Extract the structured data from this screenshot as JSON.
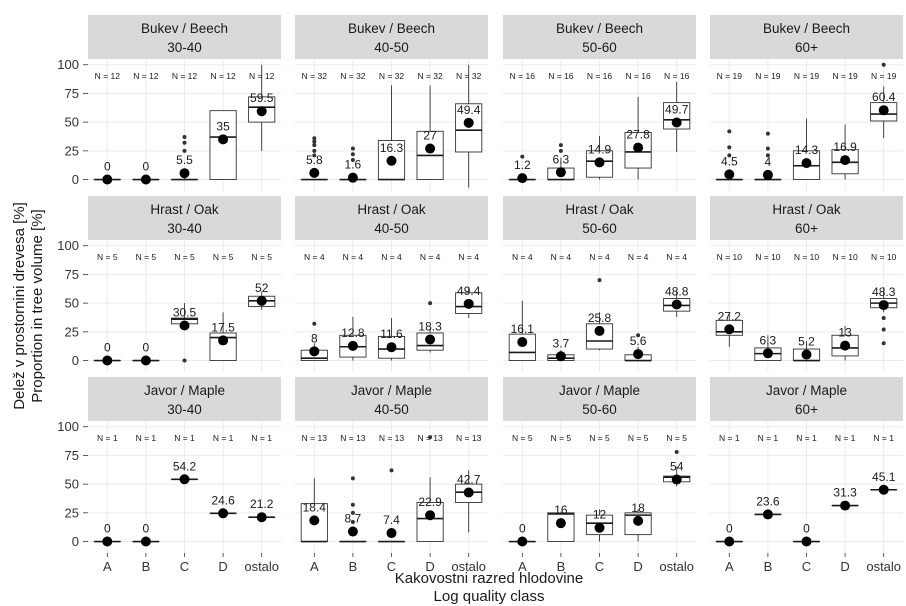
{
  "chart_data": {
    "type": "boxplot",
    "ylabel_lines": [
      "Delež v prostornini drevesa [%]",
      "Proportion in tree volume [%]"
    ],
    "xlabel_lines": [
      "Kakovostni razred hlodovine",
      "Log quality class"
    ],
    "categories": [
      "A",
      "B",
      "C",
      "D",
      "ostalo"
    ],
    "ylim": [
      -10,
      105
    ],
    "yticks": [
      0,
      25,
      50,
      75,
      100
    ],
    "grid": true,
    "rows": [
      {
        "species": "Bukev / Beech",
        "panels": [
          {
            "diameter": "30-40",
            "n": [
              "N = 12",
              "N = 12",
              "N = 12",
              "N = 12",
              "N = 12"
            ],
            "means": [
              0,
              0,
              5.5,
              35,
              59.5
            ],
            "mean_labels": [
              "0",
              "0",
              "5.5",
              "35",
              "59.5"
            ],
            "boxes": [
              [
                0,
                0,
                0,
                0,
                0
              ],
              [
                0,
                0,
                0,
                0,
                0
              ],
              [
                0,
                0,
                0,
                0,
                2
              ],
              [
                0,
                0,
                37,
                60,
                60
              ],
              [
                25,
                50,
                63,
                72,
                100
              ]
            ],
            "outliers": [
              [],
              [],
              [
                25,
                32,
                37
              ],
              [],
              []
            ]
          },
          {
            "diameter": "40-50",
            "n": [
              "N = 32",
              "N = 32",
              "N = 32",
              "N = 32",
              "N = 32"
            ],
            "means": [
              5.8,
              1.6,
              16.3,
              27,
              49.4
            ],
            "mean_labels": [
              "5.8",
              "1.6",
              "16.3",
              "27",
              "49.4"
            ],
            "boxes": [
              [
                0,
                0,
                0,
                0,
                0
              ],
              [
                0,
                0,
                0,
                0,
                0
              ],
              [
                0,
                0,
                0,
                34,
                82
              ],
              [
                0,
                0,
                21,
                42,
                82
              ],
              [
                -7,
                24,
                43,
                66,
                100
              ]
            ],
            "outliers": [
              [
                21,
                25,
                30,
                33,
                36
              ],
              [
                17,
                22,
                27
              ],
              [],
              [],
              []
            ]
          },
          {
            "diameter": "50-60",
            "n": [
              "N = 16",
              "N = 16",
              "N = 16",
              "N = 16",
              "N = 16"
            ],
            "means": [
              1.2,
              6.3,
              14.9,
              27.8,
              49.7
            ],
            "mean_labels": [
              "1.2",
              "6.3",
              "14.9",
              "27.8",
              "49.7"
            ],
            "boxes": [
              [
                0,
                0,
                0,
                0,
                0
              ],
              [
                0,
                0,
                0,
                10,
                19
              ],
              [
                0,
                2,
                16,
                25,
                38
              ],
              [
                0,
                10,
                24,
                41,
                72
              ],
              [
                24,
                44,
                52,
                67,
                85
              ]
            ],
            "outliers": [
              [
                20
              ],
              [
                25,
                30
              ],
              [],
              [],
              []
            ]
          },
          {
            "diameter": "60+",
            "n": [
              "N = 19",
              "N = 19",
              "N = 19",
              "N = 19",
              "N = 19"
            ],
            "means": [
              4.5,
              4,
              14.3,
              16.9,
              60.4
            ],
            "mean_labels": [
              "4.5",
              "4",
              "14.3",
              "16.9",
              "60.4"
            ],
            "boxes": [
              [
                0,
                0,
                0,
                0,
                0
              ],
              [
                0,
                0,
                0,
                0,
                0
              ],
              [
                0,
                0,
                12,
                25,
                53
              ],
              [
                0,
                5,
                15,
                26,
                48
              ],
              [
                36,
                51,
                57,
                67,
                81
              ]
            ],
            "outliers": [
              [
                21,
                28,
                42
              ],
              [
                21,
                27,
                40
              ],
              [],
              [],
              [
                100
              ]
            ]
          }
        ]
      },
      {
        "species": "Hrast / Oak",
        "panels": [
          {
            "diameter": "30-40",
            "n": [
              "N = 5",
              "N = 5",
              "N = 5",
              "N = 5",
              "N = 5"
            ],
            "means": [
              0,
              0,
              30.5,
              17.5,
              52
            ],
            "mean_labels": [
              "0",
              "0",
              "30.5",
              "17.5",
              "52"
            ],
            "boxes": [
              [
                0,
                0,
                0,
                0,
                0
              ],
              [
                0,
                0,
                0,
                0,
                0
              ],
              [
                28,
                32,
                36,
                37,
                50
              ],
              [
                0,
                0,
                20,
                24,
                42
              ],
              [
                44,
                47,
                52,
                56,
                60
              ]
            ],
            "outliers": [
              [],
              [],
              [
                0
              ],
              [],
              []
            ]
          },
          {
            "diameter": "40-50",
            "n": [
              "N = 4",
              "N = 4",
              "N = 4",
              "N = 4",
              "N = 4"
            ],
            "means": [
              8,
              12.8,
              11.6,
              18.3,
              49.4
            ],
            "mean_labels": [
              "8",
              "12.8",
              "11.6",
              "18.3",
              "49.4"
            ],
            "boxes": [
              [
                0,
                0,
                2,
                9,
                15
              ],
              [
                0,
                3,
                12,
                22,
                38
              ],
              [
                0,
                2,
                10,
                21,
                37
              ],
              [
                7,
                9,
                13,
                24,
                28
              ],
              [
                37,
                41,
                47,
                59,
                64
              ]
            ],
            "outliers": [
              [
                32
              ],
              [],
              [],
              [
                50
              ],
              []
            ]
          },
          {
            "diameter": "50-60",
            "n": [
              "N = 4",
              "N = 4",
              "N = 4",
              "N = 4",
              "N = 4"
            ],
            "means": [
              16.1,
              3.7,
              25.8,
              5.6,
              48.8
            ],
            "mean_labels": [
              "16.1",
              "3.7",
              "25.8",
              "5.6",
              "48.8"
            ],
            "boxes": [
              [
                0,
                0,
                7,
                23,
                52
              ],
              [
                0,
                0,
                2,
                5,
                9
              ],
              [
                9,
                10,
                17,
                32,
                42
              ],
              [
                0,
                0,
                0,
                5,
                12
              ],
              [
                38,
                43,
                48,
                54,
                60
              ]
            ],
            "outliers": [
              [],
              [],
              [
                70
              ],
              [
                22
              ],
              []
            ]
          },
          {
            "diameter": "60+",
            "n": [
              "N = 10",
              "N = 10",
              "N = 10",
              "N = 10",
              "N = 10"
            ],
            "means": [
              27.2,
              6.3,
              5.2,
              13,
              48.3
            ],
            "mean_labels": [
              "27.2",
              "6.3",
              "5.2",
              "13",
              "48.3"
            ],
            "boxes": [
              [
                12,
                22,
                25,
                35,
                42
              ],
              [
                0,
                0,
                6,
                11,
                22
              ],
              [
                0,
                0,
                0,
                10,
                17
              ],
              [
                0,
                4,
                11,
                22,
                30
              ],
              [
                42,
                46,
                50,
                54,
                64
              ]
            ],
            "outliers": [
              [],
              [],
              [],
              [],
              [
                15,
                27,
                37
              ]
            ]
          }
        ]
      },
      {
        "species": "Javor / Maple",
        "panels": [
          {
            "diameter": "30-40",
            "n": [
              "N = 1",
              "N = 1",
              "N = 1",
              "N = 1",
              "N = 1"
            ],
            "means": [
              0,
              0,
              54.2,
              24.6,
              21.2
            ],
            "mean_labels": [
              "0",
              "0",
              "54.2",
              "24.6",
              "21.2"
            ],
            "boxes": [
              [
                0,
                0,
                0,
                0,
                0
              ],
              [
                0,
                0,
                0,
                0,
                0
              ],
              [
                54.2,
                54.2,
                54.2,
                54.2,
                54.2
              ],
              [
                24.6,
                24.6,
                24.6,
                24.6,
                24.6
              ],
              [
                21.2,
                21.2,
                21.2,
                21.2,
                21.2
              ]
            ],
            "outliers": [
              [],
              [],
              [],
              [],
              []
            ]
          },
          {
            "diameter": "40-50",
            "n": [
              "N = 13",
              "N = 13",
              "N = 13",
              "N = 13",
              "N = 13"
            ],
            "means": [
              18.4,
              8.7,
              7.4,
              22.9,
              42.7
            ],
            "mean_labels": [
              "18.4",
              "8.7",
              "7.4",
              "22.9",
              "42.7"
            ],
            "boxes": [
              [
                0,
                0,
                0,
                33,
                55
              ],
              [
                0,
                0,
                0,
                0,
                0
              ],
              [
                0,
                0,
                0,
                0,
                0
              ],
              [
                0,
                0,
                20,
                34,
                56
              ],
              [
                8,
                34,
                43,
                50,
                62
              ]
            ],
            "outliers": [
              [],
              [
                17,
                25,
                32,
                55
              ],
              [
                62
              ],
              [
                91
              ],
              []
            ]
          },
          {
            "diameter": "50-60",
            "n": [
              "N = 5",
              "N = 5",
              "N = 5",
              "N = 5",
              "N = 5"
            ],
            "means": [
              0,
              16,
              12,
              18,
              54
            ],
            "mean_labels": [
              "0",
              "16",
              "12",
              "18",
              "54"
            ],
            "boxes": [
              [
                0,
                0,
                0,
                0,
                0
              ],
              [
                0,
                0,
                24,
                25,
                26
              ],
              [
                0,
                6,
                16,
                23,
                28
              ],
              [
                0,
                6,
                23,
                25,
                28
              ],
              [
                48,
                52,
                56,
                57,
                65
              ]
            ],
            "outliers": [
              [],
              [],
              [],
              [],
              [
                78
              ]
            ]
          },
          {
            "diameter": "60+",
            "n": [
              "N = 1",
              "N = 1",
              "N = 1",
              "N = 1",
              "N = 1"
            ],
            "means": [
              0,
              23.6,
              0,
              31.3,
              45.1
            ],
            "mean_labels": [
              "0",
              "23.6",
              "0",
              "31.3",
              "45.1"
            ],
            "boxes": [
              [
                0,
                0,
                0,
                0,
                0
              ],
              [
                23.6,
                23.6,
                23.6,
                23.6,
                23.6
              ],
              [
                0,
                0,
                0,
                0,
                0
              ],
              [
                31.3,
                31.3,
                31.3,
                31.3,
                31.3
              ],
              [
                45.1,
                45.1,
                45.1,
                45.1,
                45.1
              ]
            ],
            "outliers": [
              [],
              [],
              [],
              [],
              []
            ]
          }
        ]
      }
    ]
  }
}
